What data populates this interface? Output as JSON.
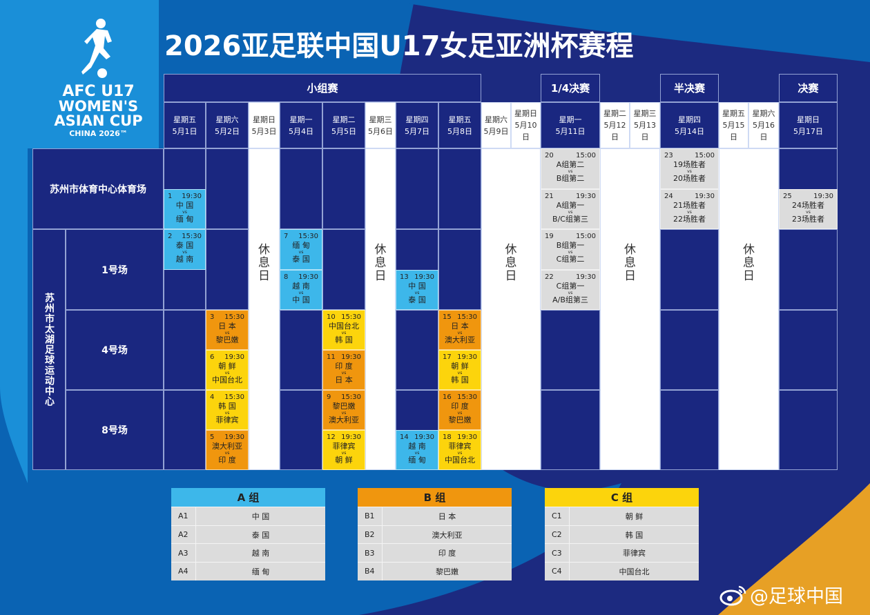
{
  "title": "2026亚足联中国U17女足亚洲杯赛程",
  "logo": {
    "line1": "AFC U17",
    "line2": "WOMEN'S",
    "line3": "ASIAN CUP",
    "line4": "CHINA 2026™"
  },
  "colors": {
    "navy": "#1a2780",
    "group_a": "#3db7ea",
    "group_b": "#f0960e",
    "group_c": "#fcd40c",
    "knockout": "#dcdcdc"
  },
  "phases": [
    {
      "label": "小组赛",
      "from": 0,
      "to": 7
    },
    {
      "label": "1/4决赛",
      "from": 10,
      "to": 10
    },
    {
      "label": "半决赛",
      "from": 13,
      "to": 13
    },
    {
      "label": "决赛",
      "from": 16,
      "to": 16
    }
  ],
  "days": [
    {
      "weekday": "星期五",
      "date": "5月1日"
    },
    {
      "weekday": "星期六",
      "date": "5月2日"
    },
    {
      "weekday": "星期日",
      "date": "5月3日",
      "rest": true
    },
    {
      "weekday": "星期一",
      "date": "5月4日"
    },
    {
      "weekday": "星期二",
      "date": "5月5日"
    },
    {
      "weekday": "星期三",
      "date": "5月6日",
      "rest": true
    },
    {
      "weekday": "星期四",
      "date": "5月7日"
    },
    {
      "weekday": "星期五",
      "date": "5月8日"
    },
    {
      "weekday": "星期六",
      "date": "5月9日",
      "rest": true
    },
    {
      "weekday": "星期日",
      "date": "5月10日",
      "rest": true
    },
    {
      "weekday": "星期一",
      "date": "5月11日"
    },
    {
      "weekday": "星期二",
      "date": "5月12日",
      "rest": true
    },
    {
      "weekday": "星期三",
      "date": "5月13日",
      "rest": true
    },
    {
      "weekday": "星期四",
      "date": "5月14日"
    },
    {
      "weekday": "星期五",
      "date": "5月15日",
      "rest": true
    },
    {
      "weekday": "星期六",
      "date": "5月16日",
      "rest": true
    },
    {
      "weekday": "星期日",
      "date": "5月17日"
    }
  ],
  "rest_label": "休息日",
  "rest_blocks": [
    [
      2,
      2
    ],
    [
      5,
      5
    ],
    [
      8,
      9
    ],
    [
      11,
      12
    ],
    [
      14,
      15
    ]
  ],
  "venues": {
    "stadium": "苏州市体育中心体育场",
    "complex": "苏州市太湖足球运动中心",
    "pitches": [
      "1号场",
      "4号场",
      "8号场"
    ]
  },
  "vs_label": "vs",
  "matches": [
    {
      "no": "1",
      "time": "19:30",
      "home": "中 国",
      "away": "缅 甸",
      "group": "A",
      "day": 0,
      "venue": 0,
      "slot": 1
    },
    {
      "no": "2",
      "time": "15:30",
      "home": "泰 国",
      "away": "越 南",
      "group": "A",
      "day": 0,
      "venue": 1,
      "slot": 0
    },
    {
      "no": "3",
      "time": "15:30",
      "home": "日 本",
      "away": "黎巴嫩",
      "group": "B",
      "day": 1,
      "venue": 2,
      "slot": 0
    },
    {
      "no": "6",
      "time": "19:30",
      "home": "朝 鲜",
      "away": "中国台北",
      "group": "C",
      "day": 1,
      "venue": 2,
      "slot": 1
    },
    {
      "no": "4",
      "time": "15:30",
      "home": "韩 国",
      "away": "菲律宾",
      "group": "C",
      "day": 1,
      "venue": 3,
      "slot": 0
    },
    {
      "no": "5",
      "time": "19:30",
      "home": "澳大利亚",
      "away": "印 度",
      "group": "B",
      "day": 1,
      "venue": 3,
      "slot": 1
    },
    {
      "no": "7",
      "time": "15:30",
      "home": "缅 甸",
      "away": "泰 国",
      "group": "A",
      "day": 3,
      "venue": 1,
      "slot": 0
    },
    {
      "no": "8",
      "time": "19:30",
      "home": "越 南",
      "away": "中 国",
      "group": "A",
      "day": 3,
      "venue": 1,
      "slot": 1
    },
    {
      "no": "10",
      "time": "15:30",
      "home": "中国台北",
      "away": "韩 国",
      "group": "C",
      "day": 4,
      "venue": 2,
      "slot": 0
    },
    {
      "no": "11",
      "time": "19:30",
      "home": "印 度",
      "away": "日 本",
      "group": "B",
      "day": 4,
      "venue": 2,
      "slot": 1
    },
    {
      "no": "9",
      "time": "15:30",
      "home": "黎巴嫩",
      "away": "澳大利亚",
      "group": "B",
      "day": 4,
      "venue": 3,
      "slot": 0
    },
    {
      "no": "12",
      "time": "19:30",
      "home": "菲律宾",
      "away": "朝 鲜",
      "group": "C",
      "day": 4,
      "venue": 3,
      "slot": 1
    },
    {
      "no": "13",
      "time": "19:30",
      "home": "中 国",
      "away": "泰 国",
      "group": "A",
      "day": 6,
      "venue": 1,
      "slot": 1
    },
    {
      "no": "14",
      "time": "19:30",
      "home": "越 南",
      "away": "缅 甸",
      "group": "A",
      "day": 6,
      "venue": 3,
      "slot": 1
    },
    {
      "no": "15",
      "time": "15:30",
      "home": "日 本",
      "away": "澳大利亚",
      "group": "B",
      "day": 7,
      "venue": 2,
      "slot": 0
    },
    {
      "no": "17",
      "time": "19:30",
      "home": "朝 鲜",
      "away": "韩 国",
      "group": "C",
      "day": 7,
      "venue": 2,
      "slot": 1
    },
    {
      "no": "16",
      "time": "15:30",
      "home": "印 度",
      "away": "黎巴嫩",
      "group": "B",
      "day": 7,
      "venue": 3,
      "slot": 0
    },
    {
      "no": "18",
      "time": "19:30",
      "home": "菲律宾",
      "away": "中国台北",
      "group": "C",
      "day": 7,
      "venue": 3,
      "slot": 1
    },
    {
      "no": "20",
      "time": "15:00",
      "home": "A组第二",
      "away": "B组第二",
      "group": "K",
      "day": 10,
      "venue": 0,
      "slot": 0
    },
    {
      "no": "21",
      "time": "19:30",
      "home": "A组第一",
      "away": "B/C组第三",
      "group": "K",
      "day": 10,
      "venue": 0,
      "slot": 1
    },
    {
      "no": "19",
      "time": "15:00",
      "home": "B组第一",
      "away": "C组第二",
      "group": "K",
      "day": 10,
      "venue": 1,
      "slot": 0
    },
    {
      "no": "22",
      "time": "19:30",
      "home": "C组第一",
      "away": "A/B组第三",
      "group": "K",
      "day": 10,
      "venue": 1,
      "slot": 1
    },
    {
      "no": "23",
      "time": "15:00",
      "home": "19场胜者",
      "away": "20场胜者",
      "group": "K",
      "day": 13,
      "venue": 0,
      "slot": 0
    },
    {
      "no": "24",
      "time": "19:30",
      "home": "21场胜者",
      "away": "22场胜者",
      "group": "K",
      "day": 13,
      "venue": 0,
      "slot": 1
    },
    {
      "no": "25",
      "time": "19:30",
      "home": "24场胜者",
      "away": "23场胜者",
      "group": "K",
      "day": 16,
      "venue": 0,
      "slot": 1
    }
  ],
  "groups": [
    {
      "title": "A 组",
      "key": "A",
      "teams": [
        {
          "code": "A1",
          "name": "中 国"
        },
        {
          "code": "A2",
          "name": "泰 国"
        },
        {
          "code": "A3",
          "name": "越 南"
        },
        {
          "code": "A4",
          "name": "缅 甸"
        }
      ]
    },
    {
      "title": "B 组",
      "key": "B",
      "teams": [
        {
          "code": "B1",
          "name": "日 本"
        },
        {
          "code": "B2",
          "name": "澳大利亚"
        },
        {
          "code": "B3",
          "name": "印 度"
        },
        {
          "code": "B4",
          "name": "黎巴嫩"
        }
      ]
    },
    {
      "title": "C 组",
      "key": "C",
      "teams": [
        {
          "code": "C1",
          "name": "朝 鲜"
        },
        {
          "code": "C2",
          "name": "韩 国"
        },
        {
          "code": "C3",
          "name": "菲律宾"
        },
        {
          "code": "C4",
          "name": "中国台北"
        }
      ]
    }
  ],
  "watermark": "@足球中国"
}
